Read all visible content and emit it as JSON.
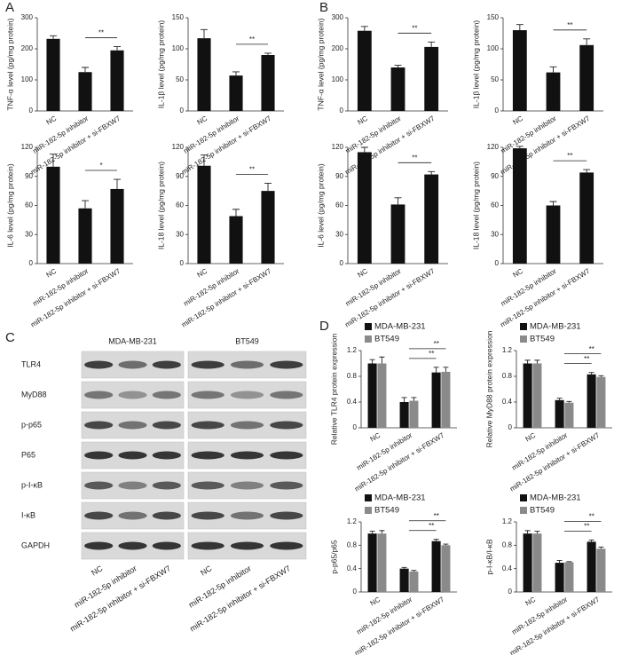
{
  "panels": [
    "A",
    "B",
    "C",
    "D"
  ],
  "chart_data": [
    {
      "type": "bar",
      "ylabel": "TNF-α level (pg/mg protein)",
      "categories": [
        "NC",
        "miR-182-5p inhibitor",
        "miR-182-5p inhibitor + si-FBXW7"
      ],
      "values": [
        232,
        125,
        195
      ],
      "errors": [
        10,
        15,
        12
      ],
      "color": "#111111",
      "ylim": [
        0,
        300
      ],
      "yticks": [
        0,
        100,
        200,
        300
      ],
      "annotations": [
        {
          "text": "**"
        }
      ]
    },
    {
      "type": "bar",
      "ylabel": "IL-1β level (pg/mg protein)",
      "categories": [
        "NC",
        "miR-182-5p inhibitor",
        "miR-182-5p inhibitor + si-FBXW7"
      ],
      "values": [
        117,
        57,
        90
      ],
      "errors": [
        14,
        6,
        3
      ],
      "color": "#111111",
      "ylim": [
        0,
        150
      ],
      "yticks": [
        0,
        50,
        100,
        150
      ],
      "annotations": [
        {
          "text": "**"
        }
      ]
    },
    {
      "type": "bar",
      "ylabel": "IL-6 level (pg/mg protein)",
      "categories": [
        "NC",
        "miR-182-5p inhibitor",
        "miR-182-5p inhibitor + si-FBXW7"
      ],
      "values": [
        100,
        57,
        77
      ],
      "errors": [
        13,
        8,
        10
      ],
      "color": "#111111",
      "ylim": [
        0,
        120
      ],
      "yticks": [
        0,
        30,
        60,
        90,
        120
      ],
      "annotations": [
        {
          "text": "*"
        }
      ]
    },
    {
      "type": "bar",
      "ylabel": "IL-18 level (pg/mg protein)",
      "categories": [
        "NC",
        "miR-182-5p inhibitor",
        "miR-182-5p inhibitor + si-FBXW7"
      ],
      "values": [
        101,
        49,
        75
      ],
      "errors": [
        11,
        7,
        8
      ],
      "color": "#111111",
      "ylim": [
        0,
        120
      ],
      "yticks": [
        0,
        30,
        60,
        90,
        120
      ],
      "annotations": [
        {
          "text": "**"
        }
      ]
    },
    {
      "type": "bar",
      "ylabel": "TNF-α level (pg/mg protein)",
      "categories": [
        "NC",
        "miR-182-5p inhibitor",
        "miR-182-5p inhibitor + si-FBXW7"
      ],
      "values": [
        258,
        140,
        206
      ],
      "errors": [
        14,
        7,
        16
      ],
      "color": "#111111",
      "ylim": [
        0,
        300
      ],
      "yticks": [
        0,
        100,
        200,
        300
      ],
      "annotations": [
        {
          "text": "**"
        }
      ]
    },
    {
      "type": "bar",
      "ylabel": "IL-1β level (pg/mg protein)",
      "categories": [
        "NC",
        "miR-182-5p inhibitor",
        "miR-182-5p inhibitor + si-FBXW7"
      ],
      "values": [
        130,
        62,
        106
      ],
      "errors": [
        9,
        9,
        10
      ],
      "color": "#111111",
      "ylim": [
        0,
        150
      ],
      "yticks": [
        0,
        50,
        100,
        150
      ],
      "annotations": [
        {
          "text": "**"
        }
      ]
    },
    {
      "type": "bar",
      "ylabel": "IL-6 level (pg/mg protein)",
      "categories": [
        "NC",
        "miR-182-5p inhibitor",
        "miR-182-5p inhibitor + si-FBXW7"
      ],
      "values": [
        115,
        61,
        92
      ],
      "errors": [
        5,
        7,
        3
      ],
      "color": "#111111",
      "ylim": [
        0,
        120
      ],
      "yticks": [
        0,
        30,
        60,
        90,
        120
      ],
      "annotations": [
        {
          "text": "**"
        }
      ]
    },
    {
      "type": "bar",
      "ylabel": "IL-18 level (pg/mg protein)",
      "categories": [
        "NC",
        "miR-182-5p inhibitor",
        "miR-182-5p inhibitor + si-FBXW7"
      ],
      "values": [
        119,
        60,
        94
      ],
      "errors": [
        2,
        4,
        3
      ],
      "color": "#111111",
      "ylim": [
        0,
        120
      ],
      "yticks": [
        0,
        30,
        60,
        90,
        120
      ],
      "annotations": [
        {
          "text": "**"
        }
      ]
    },
    {
      "type": "bar",
      "ylabel": "Relative TLR4 protein expression",
      "categories": [
        "NC",
        "miR-182-5p inhibitor",
        "miR-182-5p inhibitor + si-FBXW7"
      ],
      "legend": "upper left",
      "series": [
        {
          "name": "MDA-MB-231",
          "color": "#111111",
          "values": [
            1.0,
            0.4,
            0.86
          ],
          "errors": [
            0.06,
            0.07,
            0.08
          ]
        },
        {
          "name": "BT549",
          "color": "#8a8a8a",
          "values": [
            1.0,
            0.42,
            0.87
          ],
          "errors": [
            0.1,
            0.05,
            0.07
          ]
        }
      ],
      "ylim": [
        0,
        1.2
      ],
      "yticks": [
        0,
        0.4,
        0.8,
        1.2
      ],
      "annotations": [
        {
          "text": "**"
        },
        {
          "text": "**"
        }
      ]
    },
    {
      "type": "bar",
      "ylabel": "Relative MyD88 protein expression",
      "categories": [
        "NC",
        "miR-182-5p inhibitor",
        "miR-182-5p inhibitor + si-FBXW7"
      ],
      "legend": "upper left",
      "series": [
        {
          "name": "MDA-MB-231",
          "color": "#111111",
          "values": [
            1.0,
            0.43,
            0.83
          ],
          "errors": [
            0.05,
            0.03,
            0.03
          ]
        },
        {
          "name": "BT549",
          "color": "#8a8a8a",
          "values": [
            1.0,
            0.39,
            0.79
          ],
          "errors": [
            0.05,
            0.02,
            0.02
          ]
        }
      ],
      "ylim": [
        0,
        1.2
      ],
      "yticks": [
        0,
        0.4,
        0.8,
        1.2
      ],
      "annotations": [
        {
          "text": "**"
        },
        {
          "text": "**"
        }
      ]
    },
    {
      "type": "bar",
      "ylabel": "p-p65/p65",
      "categories": [
        "NC",
        "miR-182-5p inhibitor",
        "miR-182-5p inhibitor + si-FBXW7"
      ],
      "legend": "upper left",
      "series": [
        {
          "name": "MDA-MB-231",
          "color": "#111111",
          "values": [
            1.0,
            0.4,
            0.87
          ],
          "errors": [
            0.04,
            0.02,
            0.03
          ]
        },
        {
          "name": "BT549",
          "color": "#8a8a8a",
          "values": [
            1.0,
            0.35,
            0.8
          ],
          "errors": [
            0.05,
            0.02,
            0.02
          ]
        }
      ],
      "ylim": [
        0,
        1.2
      ],
      "yticks": [
        0,
        0.4,
        0.8,
        1.2
      ],
      "annotations": [
        {
          "text": "**"
        },
        {
          "text": "**"
        }
      ]
    },
    {
      "type": "bar",
      "ylabel": "p-I-κB/I-κB",
      "categories": [
        "NC",
        "miR-182-5p inhibitor",
        "miR-182-5p inhibitor + si-FBXW7"
      ],
      "legend": "upper left",
      "series": [
        {
          "name": "MDA-MB-231",
          "color": "#111111",
          "values": [
            1.0,
            0.5,
            0.86
          ],
          "errors": [
            0.05,
            0.04,
            0.03
          ]
        },
        {
          "name": "BT549",
          "color": "#8a8a8a",
          "values": [
            1.0,
            0.51,
            0.74
          ],
          "errors": [
            0.04,
            0.01,
            0.03
          ]
        }
      ],
      "ylim": [
        0,
        1.2
      ],
      "yticks": [
        0,
        0.4,
        0.8,
        1.2
      ],
      "annotations": [
        {
          "text": "**"
        },
        {
          "text": "**"
        }
      ]
    }
  ],
  "blot": {
    "cell_lines": [
      "MDA-MB-231",
      "BT549"
    ],
    "proteins": [
      "TLR4",
      "MyD88",
      "p-p65",
      "P65",
      "p-I-κB",
      "I-κB",
      "GAPDH"
    ],
    "lanes": [
      "NC",
      "miR-182-5p inhibitor",
      "miR-182-5p inhibitor + si-FBXW7"
    ]
  }
}
